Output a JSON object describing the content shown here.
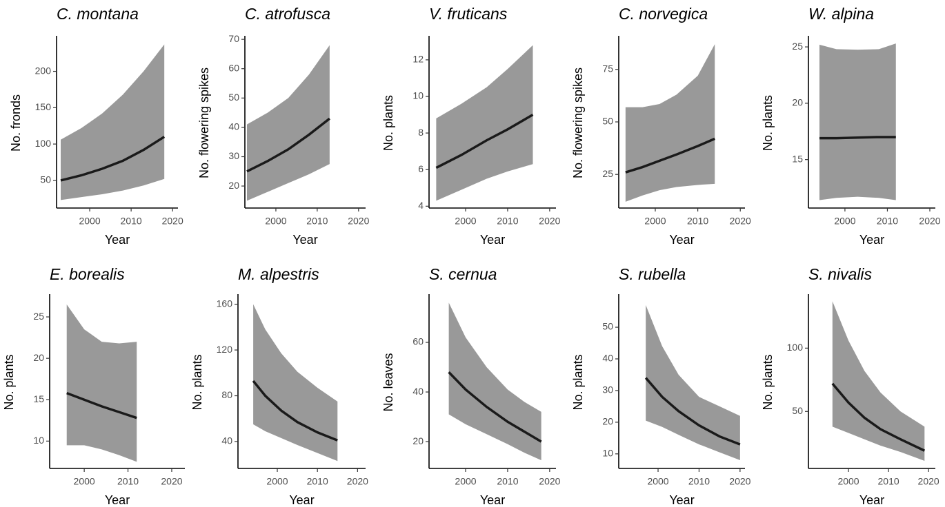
{
  "chart_data": [
    {
      "type": "line",
      "title": "C. montana",
      "xlabel": "Year",
      "ylabel": "No. fronds",
      "x": [
        1993,
        1998,
        2003,
        2008,
        2013,
        2018
      ],
      "values": [
        50,
        57,
        66,
        77,
        92,
        110
      ],
      "lower": [
        23,
        27,
        31,
        36,
        43,
        52
      ],
      "upper": [
        106,
        122,
        142,
        168,
        200,
        237
      ],
      "xlim": [
        1992,
        2021.3
      ],
      "ylim": [
        12,
        246
      ],
      "xticks": [
        2000,
        2010,
        2020
      ],
      "yticks": [
        50,
        100,
        150,
        200
      ],
      "color": "#1a1a1a",
      "band_color": "#999999"
    },
    {
      "type": "line",
      "title": "C. atrofusca",
      "xlabel": "Year",
      "ylabel": "No. flowering spikes",
      "x": [
        1993,
        1998,
        2003,
        2008,
        2013
      ],
      "values": [
        25,
        28.5,
        32.5,
        37.5,
        43
      ],
      "lower": [
        15,
        18,
        21,
        24,
        27.5
      ],
      "upper": [
        41,
        45,
        50,
        58,
        68
      ],
      "xlim": [
        1992.5,
        2021.7
      ],
      "ylim": [
        12.5,
        70.5
      ],
      "xticks": [
        2000,
        2010,
        2020
      ],
      "yticks": [
        20,
        30,
        40,
        50,
        60,
        70
      ],
      "color": "#1a1a1a",
      "band_color": "#999999"
    },
    {
      "type": "line",
      "title": "V. fruticans",
      "xlabel": "Year",
      "ylabel": "No. plants",
      "x": [
        1993,
        1999,
        2005,
        2010,
        2016
      ],
      "values": [
        6.1,
        6.8,
        7.6,
        8.2,
        9.0
      ],
      "lower": [
        4.3,
        4.9,
        5.5,
        5.9,
        6.3
      ],
      "upper": [
        8.8,
        9.6,
        10.5,
        11.5,
        12.8
      ],
      "xlim": [
        1991.3,
        2021.5
      ],
      "ylim": [
        3.9,
        13.2
      ],
      "xticks": [
        2000,
        2010,
        2020
      ],
      "yticks": [
        4,
        6,
        8,
        10,
        12
      ],
      "color": "#1a1a1a",
      "band_color": "#999999"
    },
    {
      "type": "line",
      "title": "C. norvegica",
      "xlabel": "Year",
      "ylabel": "No. flowering spikes",
      "x": [
        1993,
        1997,
        2001,
        2005,
        2010,
        2014
      ],
      "values": [
        26,
        28.5,
        31.5,
        34.5,
        38.5,
        42
      ],
      "lower": [
        12,
        15,
        17.5,
        19,
        20,
        20.5
      ],
      "upper": [
        57,
        57,
        58.5,
        63,
        72,
        87
      ],
      "xlim": [
        1991.4,
        2021.1
      ],
      "ylim": [
        9,
        90
      ],
      "xticks": [
        2000,
        2010,
        2020
      ],
      "yticks": [
        25,
        50,
        75
      ],
      "color": "#1a1a1a",
      "band_color": "#999999"
    },
    {
      "type": "line",
      "title": "W. alpina",
      "xlabel": "Year",
      "ylabel": "No. plants",
      "x": [
        1994,
        1998,
        2003,
        2008,
        2012
      ],
      "values": [
        16.9,
        16.9,
        16.95,
        17,
        17
      ],
      "lower": [
        11.4,
        11.6,
        11.7,
        11.6,
        11.4
      ],
      "upper": [
        25.2,
        24.8,
        24.75,
        24.8,
        25.3
      ],
      "xlim": [
        1991.4,
        2021.3
      ],
      "ylim": [
        10.7,
        25.8
      ],
      "xticks": [
        2000,
        2010,
        2020
      ],
      "yticks": [
        15,
        20,
        25
      ],
      "color": "#1a1a1a",
      "band_color": "#999999"
    },
    {
      "type": "line",
      "title": "E. borealis",
      "xlabel": "Year",
      "ylabel": "No. plants",
      "x": [
        1996,
        2000,
        2004,
        2008,
        2012
      ],
      "values": [
        15.8,
        15,
        14.2,
        13.5,
        12.8
      ],
      "lower": [
        9.5,
        9.5,
        9,
        8.3,
        7.5
      ],
      "upper": [
        26.5,
        23.5,
        22,
        21.8,
        22
      ],
      "xlim": [
        1992.1,
        2023
      ],
      "ylim": [
        6.7,
        27.5
      ],
      "xticks": [
        2000,
        2010,
        2020
      ],
      "yticks": [
        10,
        15,
        20,
        25
      ],
      "color": "#1a1a1a",
      "band_color": "#999999"
    },
    {
      "type": "line",
      "title": "M. alpestris",
      "xlabel": "Year",
      "ylabel": "No. plants",
      "x": [
        1994,
        1997,
        2001,
        2005,
        2010,
        2015
      ],
      "values": [
        93,
        80,
        67,
        57,
        48,
        41
      ],
      "lower": [
        55,
        49,
        43,
        37,
        30,
        23
      ],
      "upper": [
        160,
        138,
        117,
        101,
        87,
        75
      ],
      "xlim": [
        1990.2,
        2022
      ],
      "ylim": [
        16.5,
        167
      ],
      "xticks": [
        2000,
        2010,
        2020
      ],
      "yticks": [
        40,
        80,
        120,
        160
      ],
      "color": "#1a1a1a",
      "band_color": "#999999"
    },
    {
      "type": "line",
      "title": "S. cernua",
      "xlabel": "Year",
      "ylabel": "No. leaves",
      "x": [
        1996,
        2000,
        2005,
        2010,
        2014,
        2018
      ],
      "values": [
        48,
        41,
        34,
        28,
        24,
        20
      ],
      "lower": [
        31,
        27,
        23,
        19,
        15.5,
        12.5
      ],
      "upper": [
        76,
        62,
        50,
        41,
        36,
        32
      ],
      "xlim": [
        1991.3,
        2021.5
      ],
      "ylim": [
        9.2,
        78.6
      ],
      "xticks": [
        2000,
        2010,
        2020
      ],
      "yticks": [
        20,
        40,
        60
      ],
      "color": "#1a1a1a",
      "band_color": "#999999"
    },
    {
      "type": "line",
      "title": "S. rubella",
      "xlabel": "Year",
      "ylabel": "No. plants",
      "x": [
        1997,
        2001,
        2005,
        2010,
        2015,
        2020
      ],
      "values": [
        34,
        28,
        23.5,
        19,
        15.5,
        13
      ],
      "lower": [
        20.5,
        18.5,
        16,
        13,
        10.5,
        8
      ],
      "upper": [
        57,
        44,
        35,
        28,
        25,
        22
      ],
      "xlim": [
        1990.4,
        2021.2
      ],
      "ylim": [
        5.4,
        59.8
      ],
      "xticks": [
        2000,
        2010,
        2020
      ],
      "yticks": [
        10,
        20,
        30,
        40,
        50
      ],
      "color": "#1a1a1a",
      "band_color": "#999999"
    },
    {
      "type": "line",
      "title": "S. nivalis",
      "xlabel": "Year",
      "ylabel": "No. plants",
      "x": [
        1996,
        2000,
        2004,
        2008,
        2013,
        2019
      ],
      "values": [
        72,
        57,
        45,
        36,
        28,
        19
      ],
      "lower": [
        38,
        33,
        28,
        23,
        18,
        11
      ],
      "upper": [
        137,
        106,
        82,
        65,
        50,
        38
      ],
      "xlim": [
        1990,
        2021.7
      ],
      "ylim": [
        5,
        141
      ],
      "xticks": [
        2000,
        2010,
        2020
      ],
      "yticks": [
        50,
        100
      ],
      "color": "#1a1a1a",
      "band_color": "#999999"
    }
  ]
}
